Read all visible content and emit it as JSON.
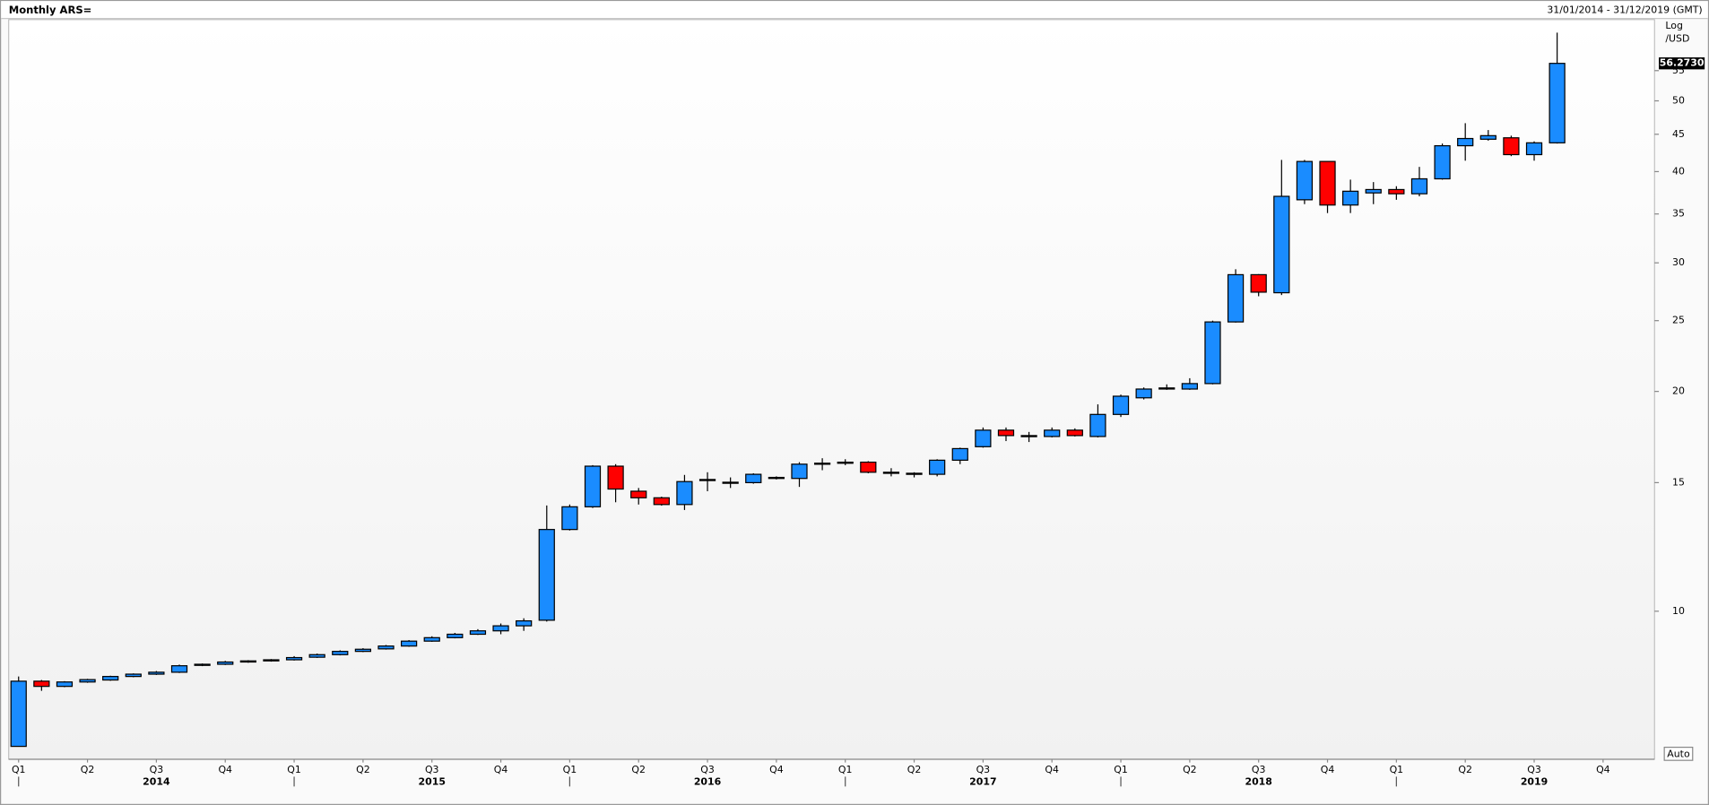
{
  "chart_data": {
    "type": "candlestick",
    "title": "Monthly ARS=",
    "date_range": "31/01/2014 - 31/12/2019 (GMT)",
    "scale_label": "Log",
    "unit_label": "/USD",
    "auto_button": "Auto",
    "log_scale": true,
    "up_color": "#1a8cff",
    "down_color": "#ff0000",
    "ylim": [
      6.27,
      64.6
    ],
    "yticks": [
      10,
      15,
      20,
      25,
      30,
      35,
      40,
      45,
      50,
      55
    ],
    "xlim": [
      -0.43,
      71.24
    ],
    "xticks": [
      {
        "value": 0,
        "label": "Q1"
      },
      {
        "value": 3,
        "label": "Q2"
      },
      {
        "value": 6,
        "label": "Q3"
      },
      {
        "value": 9,
        "label": "Q4"
      },
      {
        "value": 12,
        "label": "Q1"
      },
      {
        "value": 15,
        "label": "Q2"
      },
      {
        "value": 18,
        "label": "Q3"
      },
      {
        "value": 21,
        "label": "Q4"
      },
      {
        "value": 24,
        "label": "Q1"
      },
      {
        "value": 27,
        "label": "Q2"
      },
      {
        "value": 30,
        "label": "Q3"
      },
      {
        "value": 33,
        "label": "Q4"
      },
      {
        "value": 36,
        "label": "Q1"
      },
      {
        "value": 39,
        "label": "Q2"
      },
      {
        "value": 42,
        "label": "Q3"
      },
      {
        "value": 45,
        "label": "Q4"
      },
      {
        "value": 48,
        "label": "Q1"
      },
      {
        "value": 51,
        "label": "Q2"
      },
      {
        "value": 54,
        "label": "Q3"
      },
      {
        "value": 57,
        "label": "Q4"
      },
      {
        "value": 60,
        "label": "Q1"
      },
      {
        "value": 63,
        "label": "Q2"
      },
      {
        "value": 66,
        "label": "Q3"
      },
      {
        "value": 69,
        "label": "Q4"
      }
    ],
    "year_labels": [
      {
        "value": 6,
        "label": "2014"
      },
      {
        "value": 18,
        "label": "2015"
      },
      {
        "value": 30,
        "label": "2016"
      },
      {
        "value": 42,
        "label": "2017"
      },
      {
        "value": 54,
        "label": "2018"
      },
      {
        "value": 66,
        "label": "2019"
      }
    ],
    "last_price": {
      "value": 56.273,
      "label": "56.2730"
    },
    "open": [
      6.53,
      8.02,
      7.89,
      8.0,
      8.05,
      8.14,
      8.2,
      8.25,
      8.43,
      8.46,
      8.52,
      8.55,
      8.58,
      8.65,
      8.72,
      8.81,
      8.88,
      8.96,
      9.1,
      9.2,
      9.3,
      9.4,
      9.55,
      9.72,
      12.94,
      13.9,
      15.8,
      14.6,
      14.3,
      14.0,
      15.1,
      15.0,
      15.0,
      15.2,
      15.2,
      15.9,
      15.95,
      16.0,
      15.5,
      15.45,
      15.4,
      16.1,
      16.8,
      17.7,
      17.4,
      17.35,
      17.7,
      17.35,
      18.6,
      19.6,
      20.2,
      20.15,
      20.5,
      24.9,
      28.9,
      27.3,
      36.6,
      41.3,
      36.0,
      37.4,
      37.8,
      37.3,
      39.1,
      43.4,
      44.3,
      44.5,
      42.2,
      43.8
    ],
    "high": [
      8.14,
      8.05,
      8.02,
      8.08,
      8.16,
      8.22,
      8.28,
      8.45,
      8.48,
      8.55,
      8.57,
      8.6,
      8.68,
      8.75,
      8.84,
      8.9,
      8.99,
      9.13,
      9.24,
      9.34,
      9.45,
      9.62,
      9.78,
      13.96,
      14.0,
      15.85,
      15.9,
      14.75,
      14.35,
      15.37,
      15.5,
      15.25,
      15.45,
      15.3,
      16.0,
      16.2,
      16.15,
      16.05,
      15.7,
      15.5,
      16.15,
      16.75,
      17.85,
      17.85,
      17.6,
      17.85,
      17.8,
      19.2,
      19.8,
      20.25,
      20.45,
      20.85,
      25.0,
      29.4,
      28.95,
      41.5,
      41.5,
      41.3,
      39.0,
      38.7,
      38.2,
      40.6,
      43.7,
      46.6,
      45.6,
      44.8,
      44.0,
      62.0
    ],
    "low": [
      6.53,
      7.78,
      7.87,
      7.98,
      8.03,
      8.12,
      8.18,
      8.23,
      8.41,
      8.44,
      8.5,
      8.53,
      8.56,
      8.63,
      8.7,
      8.79,
      8.86,
      8.94,
      9.08,
      9.18,
      9.28,
      9.3,
      9.4,
      9.68,
      12.9,
      13.85,
      14.1,
      14.0,
      13.95,
      13.76,
      14.6,
      14.75,
      14.95,
      15.15,
      14.8,
      15.6,
      15.85,
      15.45,
      15.3,
      15.25,
      15.3,
      15.9,
      16.75,
      17.1,
      17.05,
      17.3,
      17.35,
      17.3,
      18.45,
      19.5,
      20.1,
      20.1,
      20.45,
      24.85,
      27.0,
      27.1,
      36.1,
      35.1,
      35.1,
      36.1,
      36.6,
      37.0,
      39.0,
      41.4,
      44.1,
      42.0,
      41.4,
      43.7
    ],
    "close": [
      8.02,
      7.89,
      8.0,
      8.06,
      8.14,
      8.2,
      8.25,
      8.42,
      8.46,
      8.52,
      8.55,
      8.58,
      8.64,
      8.72,
      8.81,
      8.87,
      8.96,
      9.1,
      9.2,
      9.3,
      9.4,
      9.55,
      9.7,
      12.94,
      13.9,
      15.8,
      14.7,
      14.3,
      14.0,
      15.05,
      15.15,
      15.02,
      15.4,
      15.25,
      15.9,
      15.95,
      16.0,
      15.5,
      15.45,
      15.4,
      16.1,
      16.7,
      17.7,
      17.4,
      17.38,
      17.7,
      17.4,
      18.6,
      19.7,
      20.15,
      20.22,
      20.5,
      24.9,
      28.9,
      27.35,
      37.0,
      41.3,
      36.0,
      37.6,
      37.8,
      37.3,
      39.1,
      43.4,
      44.4,
      44.8,
      42.2,
      43.8,
      56.273
    ]
  }
}
